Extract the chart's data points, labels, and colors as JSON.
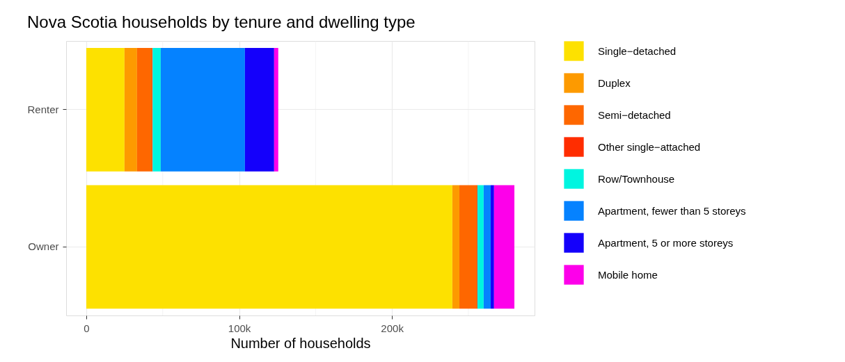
{
  "chart_data": {
    "type": "bar",
    "orientation": "horizontal",
    "stacked": true,
    "title": "Nova Scotia households by tenure and dwelling type",
    "xlabel": "Number of households",
    "categories": [
      "Renter",
      "Owner"
    ],
    "series": [
      {
        "name": "Single−detached",
        "color": "#fde100",
        "values": [
          25000,
          239500
        ]
      },
      {
        "name": "Duplex",
        "color": "#fd9a00",
        "values": [
          8200,
          4600
        ]
      },
      {
        "name": "Semi−detached",
        "color": "#fe6700",
        "values": [
          9700,
          11400
        ]
      },
      {
        "name": "Other single−attached",
        "color": "#ff2d00",
        "values": [
          500,
          400
        ]
      },
      {
        "name": "Row/Townhouse",
        "color": "#00f5e0",
        "values": [
          5300,
          4100
        ]
      },
      {
        "name": "Apartment, fewer than 5 storeys",
        "color": "#0582ff",
        "values": [
          55100,
          4600
        ]
      },
      {
        "name": "Apartment, 5 or more storeys",
        "color": "#1400fb",
        "values": [
          19100,
          2200
        ]
      },
      {
        "name": "Mobile home",
        "color": "#fd00ea",
        "values": [
          2700,
          13300
        ]
      }
    ],
    "xlim": [
      -13200,
      293300
    ],
    "xticks": [
      {
        "value": 0,
        "label": "0"
      },
      {
        "value": 50000,
        "label": null
      },
      {
        "value": 100000,
        "label": "100k"
      },
      {
        "value": 150000,
        "label": null
      },
      {
        "value": 200000,
        "label": "200k"
      },
      {
        "value": 250000,
        "label": null
      }
    ],
    "grid": true,
    "legend": "right"
  }
}
